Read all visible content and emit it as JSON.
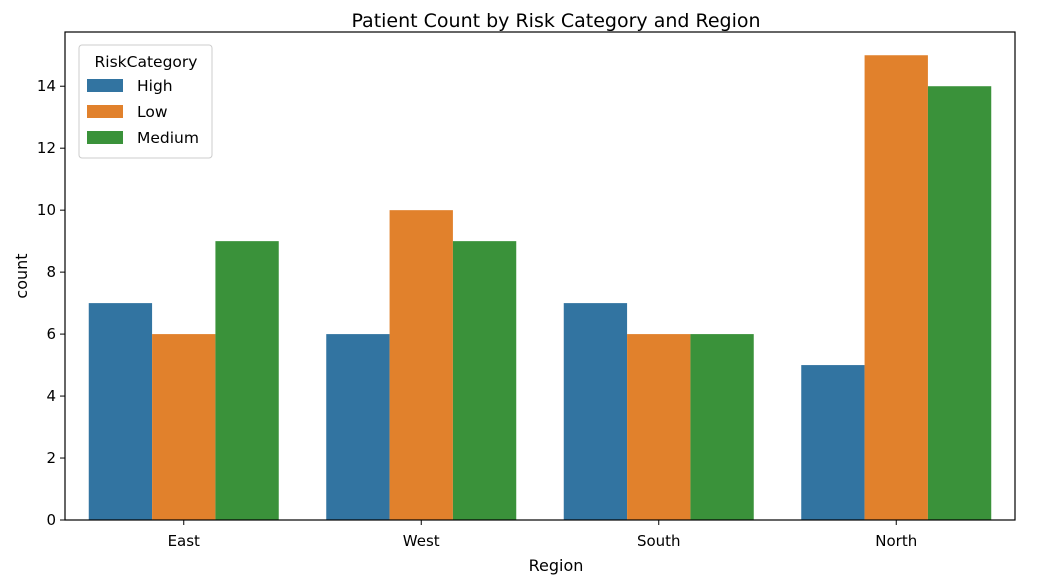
{
  "chart_data": {
    "type": "bar",
    "title": "Patient Count by Risk Category and Region",
    "xlabel": "Region",
    "ylabel": "count",
    "categories": [
      "East",
      "West",
      "South",
      "North"
    ],
    "series": [
      {
        "name": "High",
        "values": [
          7,
          6,
          7,
          5
        ],
        "color": "#3274a1"
      },
      {
        "name": "Low",
        "values": [
          6,
          10,
          6,
          15
        ],
        "color": "#e1812c"
      },
      {
        "name": "Medium",
        "values": [
          9,
          9,
          6,
          14
        ],
        "color": "#3a923a"
      }
    ],
    "ylim": [
      0,
      15.75
    ],
    "yticks": [
      0,
      2,
      4,
      6,
      8,
      10,
      12,
      14
    ],
    "grid": false,
    "legend": {
      "title": "RiskCategory",
      "placement": "top-left"
    }
  }
}
